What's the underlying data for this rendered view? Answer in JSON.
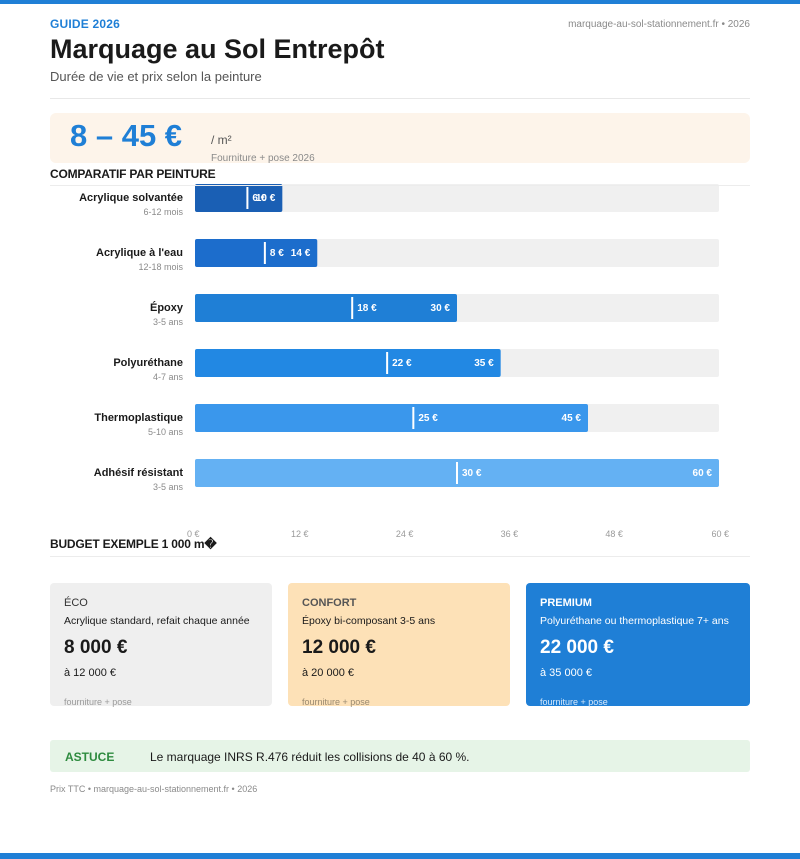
{
  "header": {
    "guide": "GUIDE 2026",
    "site": "marquage-au-sol-stationnement.fr • 2026",
    "title": "Marquage au Sol Entrepôt",
    "subtitle": "Durée de vie et prix selon la peinture"
  },
  "price": {
    "range": "8 – 45 €",
    "unit": "/ m²",
    "note": "Fourniture + pose 2026"
  },
  "sections": {
    "comparatif": "COMPARATIF PAR PEINTURE",
    "budget": "BUDGET EXEMPLE 1 000 m�"
  },
  "chart_data": {
    "type": "bar",
    "orientation": "horizontal",
    "xlim": [
      0,
      60
    ],
    "ticks": [
      0,
      12,
      24,
      36,
      48,
      60
    ],
    "tick_labels": [
      "0 €",
      "12 €",
      "24 €",
      "36 €",
      "48 €",
      "60 €"
    ],
    "grid": false,
    "rows": [
      {
        "name": "Acrylique solvantée",
        "life": "6-12 mois",
        "min": 6,
        "max": 10,
        "min_label": "6 €",
        "max_label": "10 €",
        "color": "#1a5fb4"
      },
      {
        "name": "Acrylique à l'eau",
        "life": "12-18 mois",
        "min": 8,
        "max": 14,
        "min_label": "8 €",
        "max_label": "14 €",
        "color": "#1c6dcc"
      },
      {
        "name": "Époxy",
        "life": "3-5 ans",
        "min": 18,
        "max": 30,
        "min_label": "18 €",
        "max_label": "30 €",
        "color": "#1f7fd6"
      },
      {
        "name": "Polyuréthane",
        "life": "4-7 ans",
        "min": 22,
        "max": 35,
        "min_label": "22 €",
        "max_label": "35 €",
        "color": "#2288e3"
      },
      {
        "name": "Thermoplastique",
        "life": "5-10 ans",
        "min": 25,
        "max": 45,
        "min_label": "25 €",
        "max_label": "45 €",
        "color": "#3a97ec"
      },
      {
        "name": "Adhésif résistant",
        "life": "3-5 ans",
        "min": 30,
        "max": 60,
        "min_label": "30 €",
        "max_label": "60 €",
        "color": "#64b1f3"
      }
    ]
  },
  "cards": [
    {
      "name": "ÉCO",
      "desc": "Acrylique standard, refait chaque année",
      "price": "8 000 €",
      "max": "à 12 000 €",
      "note": "fourniture + pose"
    },
    {
      "name": "CONFORT",
      "desc": "Époxy bi-composant 3-5 ans",
      "price": "12 000 €",
      "max": "à 20 000 €",
      "note": "fourniture + pose"
    },
    {
      "name": "PREMIUM",
      "desc": "Polyuréthane ou thermoplastique 7+ ans",
      "price": "22 000 €",
      "max": "à 35 000 €",
      "note": "fourniture + pose"
    }
  ],
  "tip": {
    "label": "ASTUCE",
    "text": "Le marquage INRS R.476 réduit les collisions de 40 à 60 %."
  },
  "footer": "Prix TTC • marquage-au-sol-stationnement.fr • 2026",
  "colors": {
    "accent": "#1f7fd6",
    "price_bg": "#fdf4ea",
    "tip_bg": "#e6f4e7",
    "tip_label": "#2e8b3f",
    "confort_bg": "#fde1b7"
  }
}
